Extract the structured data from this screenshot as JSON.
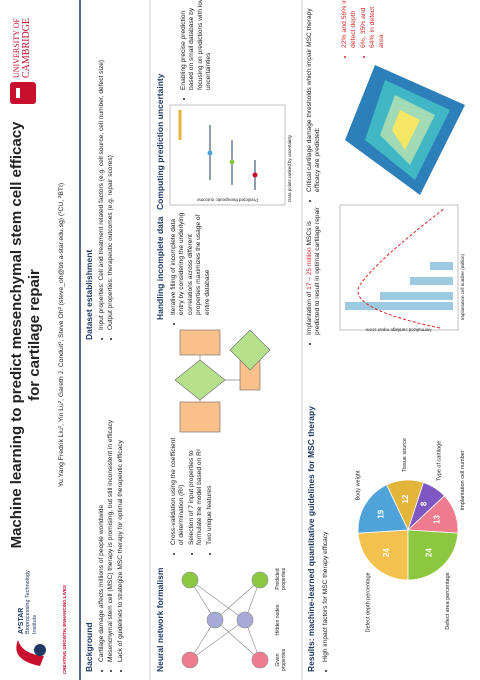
{
  "header": {
    "title": "Machine learning to predict mesenchymal stem cell efficacy for cartilage repair",
    "authors": "Yu Yang Fredrik Liu¹, Yin Lu², Gareth J. Conduit¹, Steve Oh² (steve_oh@bti.a-star.edu.sg) (¹CU, ²BTI)",
    "left_logo": [
      "A*STAR",
      "Bioprocessing Technology Institute",
      "CREATING GROWTH, ENHANCING LIVES"
    ],
    "right_logo": [
      "UNIVERSITY OF",
      "CAMBRIDGE"
    ]
  },
  "background": {
    "heading": "Background",
    "bullets": [
      "Cartilage damage affects millions of people worldwide",
      "Mesenchymal stem cell (MSC) therapy is promising, but still inconsistent in efficacy",
      "Lack of guidelines to strategize MSC therapy for optimal therapeutic efficacy"
    ]
  },
  "dataset": {
    "heading": "Dataset establishment",
    "bullets": [
      "Input properties: Cell and treatment related factors (e.g. cell source, cell number, defect size)",
      "Output properties: therapeutic outcomes (e.g. repair scores)"
    ]
  },
  "neural_network": {
    "heading": "Neural network formalism",
    "bullets": [
      "Cross-validation using the coefficient of determination (R²)",
      "Selection of 7 input properties to formulate the model based on R²",
      "Two unique features"
    ],
    "labels": [
      "Given properties",
      "Hidden nodes",
      "Predicted properties"
    ]
  },
  "incomplete_data": {
    "heading": "Handling incomplete data",
    "bullets": [
      "Iterative filling of incomplete data entry by considering the underlying correlations across different properties maximizes the usage of entire database"
    ]
  },
  "uncertainty": {
    "heading": "Computing prediction uncertainty",
    "bullets": [
      "Enabling precise prediction based on small database by focusing on predictions with low uncertainties"
    ],
    "x_label": "Data points ranked by uncertainty",
    "y_label": "Predicted therapeutic outcome"
  },
  "results": {
    "heading": "Results: machine-learned quantitative guidelines for MSC therapy",
    "impact": {
      "text": "High impact factors for MSC therapy efficacy",
      "chart_data": {
        "type": "pie",
        "categories": [
          "Defect depth percentage",
          "Body weight",
          "Tissue source",
          "Type of cartilage",
          "Implantation cell number",
          "Defect area percentage"
        ],
        "values": [
          24,
          19,
          12,
          8,
          13,
          24
        ],
        "colors": [
          "#f2c14e",
          "#4fa3d8",
          "#e3b53b",
          "#7e57c2",
          "#ef7c8e",
          "#8dc63f"
        ]
      }
    },
    "implantation": {
      "text": [
        "Implantation of ",
        "17 – 25 million",
        " MSCs is predicted to result in optimal cartilage repair"
      ],
      "x_label": "Implantation cell number (million)",
      "y_label": "Normalized cartilage repair score"
    },
    "thresholds": {
      "text": "Critical cartilage damage thresholds which impair MSC therapy efficacy are predicted:",
      "bullets": [
        "22% and 56% in defect depth",
        "6%, 35% and 64% in defect area"
      ]
    }
  }
}
